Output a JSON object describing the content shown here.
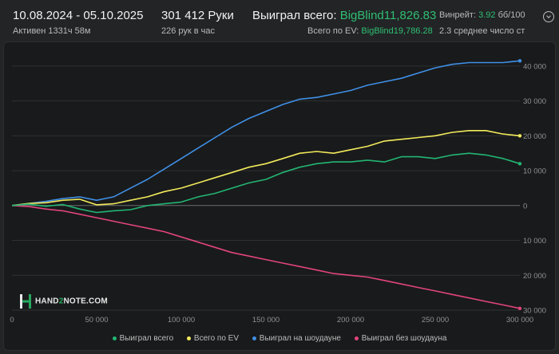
{
  "header": {
    "date_range": "10.08.2024 - 05.10.2025",
    "active": "Активен 1331ч 58м",
    "hands": "301 412 Руки",
    "hands_per_hour": "226 рук в час",
    "won_total_label": "Выиграл всего:",
    "won_total_value": "BigBlind11,826.83",
    "ev_total_label": "Всего по EV:",
    "ev_total_value": "BigBlind19,786.28",
    "winrate_label": "Винрейт:",
    "winrate_value": "3.92",
    "winrate_unit": "бб/100",
    "avg_players": "2.3 среднее число ст"
  },
  "logo": {
    "prefix": "HAND",
    "two": "2",
    "suffix": "NOTE.COM"
  },
  "colors": {
    "background": "#222426",
    "plot_background": "#191a1b",
    "won": "#22b573",
    "ev": "#f2ea5c",
    "showdown": "#3f8fe6",
    "non_showdown": "#e0457b",
    "positive_value": "#2fbf71"
  },
  "icons": [
    "chevron-down-circle-icon",
    "hand2note-logo-icon"
  ],
  "chart_data": {
    "type": "line",
    "xlim": [
      0,
      300000
    ],
    "ylim": [
      -30000,
      45000
    ],
    "x_ticks": [
      0,
      50000,
      100000,
      150000,
      200000,
      250000,
      300000
    ],
    "x_tick_labels": [
      "0",
      "50 000",
      "100 000",
      "150 000",
      "200 000",
      "250 000",
      "300 000"
    ],
    "y_ticks": [
      40000,
      30000,
      20000,
      10000,
      0,
      -10000,
      -20000,
      -30000
    ],
    "y_tick_labels": [
      "40 000",
      "30 000",
      "20 000",
      "10 000",
      "0",
      "10 000",
      "20 000",
      "30 000"
    ],
    "grid": "horizontal",
    "legend_position": "bottom-center",
    "x": [
      0,
      10000,
      20000,
      30000,
      40000,
      50000,
      60000,
      70000,
      80000,
      90000,
      100000,
      110000,
      120000,
      130000,
      140000,
      150000,
      160000,
      170000,
      180000,
      190000,
      200000,
      210000,
      220000,
      230000,
      240000,
      250000,
      260000,
      270000,
      280000,
      290000,
      300000
    ],
    "series": [
      {
        "name": "Выиграл всего",
        "color": "#22b573",
        "values": [
          0,
          400,
          -200,
          300,
          -1000,
          -2000,
          -1500,
          -1200,
          0,
          500,
          1000,
          2500,
          3500,
          5000,
          6500,
          7500,
          9500,
          11000,
          12000,
          12500,
          12500,
          13000,
          12500,
          14000,
          14000,
          13500,
          14500,
          15000,
          14500,
          13500,
          12000
        ]
      },
      {
        "name": "Всего по EV",
        "color": "#f2ea5c",
        "values": [
          0,
          600,
          800,
          1500,
          1800,
          200,
          500,
          1500,
          2500,
          4000,
          5000,
          6500,
          8000,
          9500,
          11000,
          12000,
          13500,
          15000,
          15500,
          15000,
          16000,
          17000,
          18500,
          19000,
          19500,
          20000,
          21000,
          21500,
          21500,
          20500,
          20000
        ]
      },
      {
        "name": "Выиграл на шоудауне",
        "color": "#3f8fe6",
        "values": [
          0,
          600,
          1200,
          2000,
          2500,
          1500,
          2500,
          5000,
          7500,
          10500,
          13500,
          16500,
          19500,
          22500,
          25000,
          27000,
          29000,
          30500,
          31000,
          32000,
          33000,
          34500,
          35500,
          36500,
          38000,
          39500,
          40500,
          41000,
          41000,
          41000,
          41500
        ]
      },
      {
        "name": "Выиграл без шоудауна",
        "color": "#e0457b",
        "values": [
          0,
          -300,
          -1000,
          -1500,
          -2500,
          -3500,
          -4500,
          -5500,
          -6500,
          -7500,
          -9000,
          -10500,
          -12000,
          -13500,
          -14500,
          -15500,
          -16500,
          -17500,
          -18500,
          -19500,
          -20000,
          -20500,
          -21500,
          -22500,
          -23500,
          -24500,
          -25500,
          -26500,
          -27500,
          -28500,
          -29500
        ]
      }
    ]
  }
}
